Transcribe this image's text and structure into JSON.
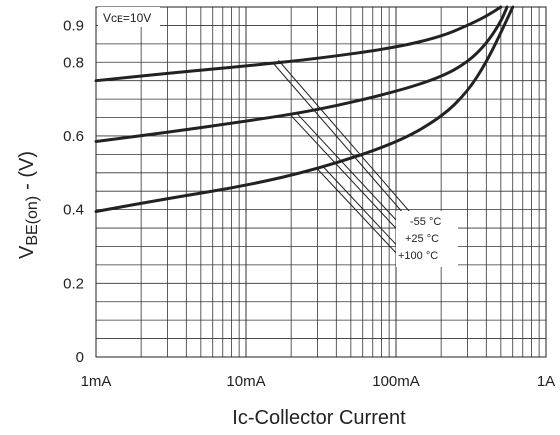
{
  "chart_data": {
    "type": "line",
    "title": "",
    "condition": "Vᴄᴇ=10V",
    "xlabel": "Ic-Collector Current",
    "ylabel_main": "V",
    "ylabel_sub": "BE(on)",
    "ylabel_unit": "- (V)",
    "x_scale": "log",
    "xlim": [
      0.001,
      1
    ],
    "ylim": [
      0,
      0.95
    ],
    "x_ticks": [
      {
        "value": 0.001,
        "label": "1mA"
      },
      {
        "value": 0.01,
        "label": "10mA"
      },
      {
        "value": 0.1,
        "label": "100mA"
      },
      {
        "value": 1,
        "label": "1A"
      }
    ],
    "y_ticks": [
      {
        "value": 0,
        "label": "0"
      },
      {
        "value": 0.2,
        "label": "0.2"
      },
      {
        "value": 0.4,
        "label": "0.4"
      },
      {
        "value": 0.6,
        "label": "0.6"
      },
      {
        "value": 0.8,
        "label": "0.8"
      },
      {
        "value": 0.9,
        "label": "0.9"
      }
    ],
    "grid": true,
    "series": [
      {
        "name": "-55 °C",
        "x": [
          0.001,
          0.003,
          0.01,
          0.03,
          0.1,
          0.2,
          0.3,
          0.4,
          0.5
        ],
        "y": [
          0.75,
          0.77,
          0.79,
          0.81,
          0.84,
          0.87,
          0.9,
          0.925,
          0.95
        ]
      },
      {
        "name": "+25 °C",
        "x": [
          0.001,
          0.003,
          0.01,
          0.03,
          0.1,
          0.2,
          0.3,
          0.4,
          0.5,
          0.55
        ],
        "y": [
          0.585,
          0.61,
          0.64,
          0.67,
          0.72,
          0.76,
          0.8,
          0.85,
          0.91,
          0.95
        ]
      },
      {
        "name": "+100 °C",
        "x": [
          0.001,
          0.003,
          0.01,
          0.03,
          0.1,
          0.2,
          0.3,
          0.4,
          0.5,
          0.6
        ],
        "y": [
          0.395,
          0.43,
          0.465,
          0.51,
          0.58,
          0.65,
          0.72,
          0.8,
          0.88,
          0.95
        ]
      }
    ],
    "annotation_labels": [
      "-55 °C",
      "+25 °C",
      "+100 °C"
    ]
  }
}
